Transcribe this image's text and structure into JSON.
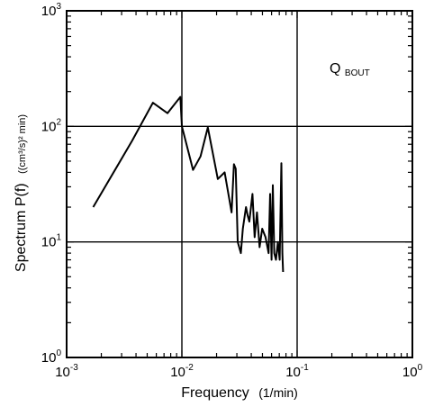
{
  "chart_data": {
    "type": "line",
    "x_scale": "log",
    "y_scale": "log",
    "xlim": [
      0.001,
      1
    ],
    "ylim": [
      1,
      1000
    ],
    "grid": true,
    "xlabel": "Frequency",
    "xlabel_unit": "(1/min)",
    "ylabel": "Spectrum P(f)",
    "ylabel_unit": "((cm³/s)² min)",
    "annotation": {
      "main": "Q",
      "sub": "BOUT"
    },
    "x_ticks": [
      {
        "value": 0.001,
        "base": "10",
        "exp": "-3"
      },
      {
        "value": 0.01,
        "base": "10",
        "exp": "-2"
      },
      {
        "value": 0.1,
        "base": "10",
        "exp": "-1"
      },
      {
        "value": 1,
        "base": "10",
        "exp": "0"
      }
    ],
    "y_ticks": [
      {
        "value": 1,
        "base": "10",
        "exp": "0"
      },
      {
        "value": 10,
        "base": "10",
        "exp": "1"
      },
      {
        "value": 100,
        "base": "10",
        "exp": "2"
      },
      {
        "value": 1000,
        "base": "10",
        "exp": "3"
      }
    ],
    "series": [
      {
        "x": [
          0.0017,
          0.0037,
          0.0056,
          0.0075,
          0.0097,
          0.01,
          0.0125,
          0.0145,
          0.0168,
          0.0205,
          0.0235,
          0.027,
          0.0283,
          0.0293,
          0.0305,
          0.0325,
          0.0338,
          0.036,
          0.0372,
          0.0385,
          0.041,
          0.0428,
          0.0448,
          0.0472,
          0.0498,
          0.0532,
          0.0565,
          0.0583,
          0.06,
          0.0615,
          0.0633,
          0.0655,
          0.068,
          0.0705,
          0.073,
          0.0745,
          0.0755
        ],
        "y": [
          20,
          75,
          160,
          130,
          180,
          100,
          42,
          55,
          98,
          35,
          40,
          18,
          47,
          43,
          10,
          8,
          13,
          20,
          17,
          15,
          26,
          11,
          18,
          9,
          13,
          11,
          8,
          26,
          7,
          31,
          8,
          7,
          10,
          7,
          48,
          8,
          5.5
        ]
      }
    ]
  }
}
